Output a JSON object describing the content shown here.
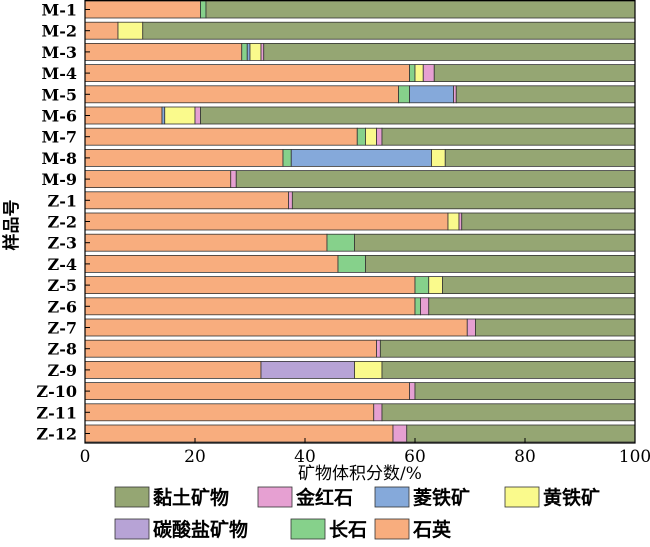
{
  "chart_data": {
    "type": "bar",
    "orientation": "horizontal",
    "stacked": true,
    "xlabel": "矿物体积分数/%",
    "ylabel": "样品号",
    "xlim": [
      0,
      100
    ],
    "xticks": [
      "0",
      "20",
      "40",
      "60",
      "80",
      "100"
    ],
    "categories": [
      "M-1",
      "M-2",
      "M-3",
      "M-4",
      "M-5",
      "M-6",
      "M-7",
      "M-8",
      "M-9",
      "Z-1",
      "Z-2",
      "Z-3",
      "Z-4",
      "Z-5",
      "Z-6",
      "Z-7",
      "Z-8",
      "Z-9",
      "Z-10",
      "Z-11",
      "Z-12"
    ],
    "series": [
      {
        "name": "石英",
        "color": "#f8ad7e",
        "values": [
          21,
          6,
          28.5,
          59,
          57,
          14,
          49.5,
          36,
          26.5,
          37,
          66,
          44,
          46,
          60,
          60,
          69.5,
          53,
          32,
          59,
          52.5,
          56
        ]
      },
      {
        "name": "碳酸盐矿物",
        "color": "#b7a3d6",
        "values": [
          0,
          0,
          0,
          0,
          0,
          0,
          0,
          0,
          0,
          0,
          0,
          0,
          0,
          0,
          0,
          0,
          0,
          17,
          0,
          0,
          0
        ]
      },
      {
        "name": "长石",
        "color": "#86d18b",
        "values": [
          1,
          0,
          1,
          1,
          2,
          0,
          1.5,
          1.5,
          0,
          0,
          0,
          5,
          5,
          2.5,
          1,
          0,
          0,
          0,
          0,
          0,
          0
        ]
      },
      {
        "name": "菱铁矿",
        "color": "#85a9da",
        "values": [
          0,
          0,
          0.5,
          0,
          8,
          0.5,
          0,
          25.5,
          0,
          0,
          0,
          0,
          0,
          0,
          0,
          0,
          0,
          0,
          0,
          0,
          0
        ]
      },
      {
        "name": "黄铁矿",
        "color": "#fafa8c",
        "values": [
          0,
          4.5,
          2,
          1.5,
          0,
          5.5,
          2,
          2.5,
          0,
          0,
          2,
          0,
          0,
          2.5,
          0,
          0,
          0,
          5,
          0,
          0,
          0
        ]
      },
      {
        "name": "金红石",
        "color": "#e6a0d2",
        "values": [
          0,
          0,
          0.5,
          2,
          0.5,
          1,
          1,
          0,
          1,
          0.7,
          0.5,
          0,
          0,
          0,
          1.5,
          1.5,
          0.7,
          0,
          1,
          1.5,
          2.5
        ]
      },
      {
        "name": "黏土矿物",
        "color": "#95a673",
        "values": [
          78,
          89.5,
          67.5,
          36.5,
          32.5,
          79,
          46,
          34.5,
          72.5,
          62.3,
          31.5,
          51,
          49,
          35,
          37.5,
          29,
          46.3,
          46,
          40,
          46,
          41.5
        ]
      }
    ],
    "legend": {
      "position": "bottom",
      "order": [
        "黏土矿物",
        "金红石",
        "菱铁矿",
        "黄铁矿",
        "碳酸盐矿物",
        "长石",
        "石英"
      ]
    },
    "grid": false
  }
}
